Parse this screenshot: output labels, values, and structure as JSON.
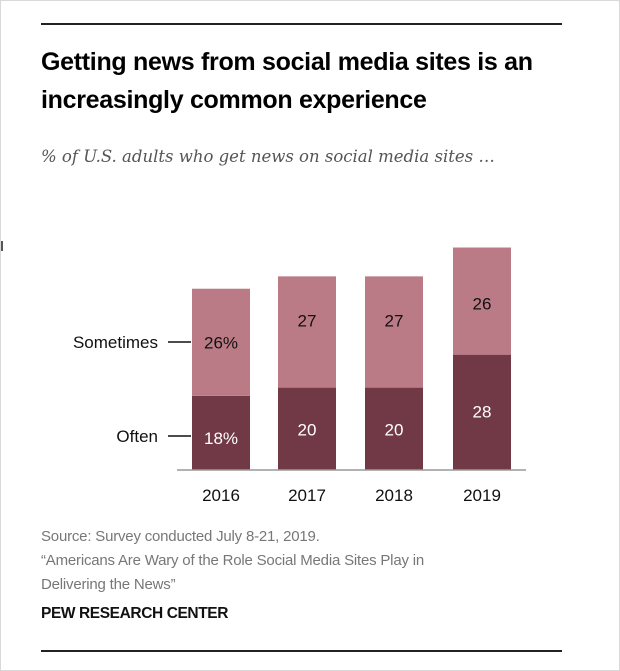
{
  "title": "Getting news from social media sites is an increasingly common experience",
  "subtitle": "% of U.S. adults who get news on social media sites …",
  "source": {
    "line1": "Source: Survey conducted July 8-21, 2019.",
    "line2": "“Americans Are Wary of the Role Social Media Sites Play in",
    "line3": "Delivering the News”"
  },
  "brand": "PEW RESEARCH CENTER",
  "chart_data": {
    "type": "bar",
    "stacked": true,
    "categories": [
      "2016",
      "2017",
      "2018",
      "2019"
    ],
    "series": [
      {
        "name": "Often",
        "values": [
          18,
          20,
          20,
          28
        ],
        "labels": [
          "18%",
          "20",
          "20",
          "28"
        ],
        "color": "#713945",
        "label_color": "#ffffff"
      },
      {
        "name": "Sometimes",
        "values": [
          26,
          27,
          27,
          26
        ],
        "labels": [
          "26%",
          "27",
          "27",
          "26"
        ],
        "color": "#bb7b86",
        "label_color": "#111111"
      }
    ],
    "title": "Getting news from social media sites is an increasingly common experience",
    "subtitle": "% of U.S. adults who get news on social media sites …",
    "xlabel": "",
    "ylabel": "",
    "ylim": [
      0,
      54
    ],
    "grid": false,
    "legend": "left, direct labels"
  }
}
